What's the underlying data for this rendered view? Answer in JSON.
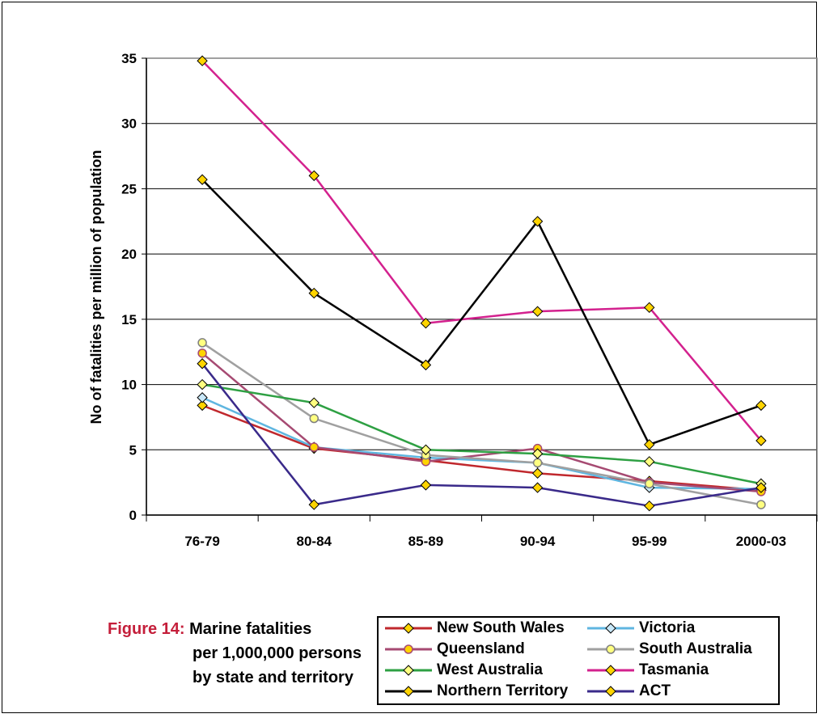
{
  "chart_data": {
    "type": "line",
    "categories": [
      "76-79",
      "80-84",
      "85-89",
      "90-94",
      "95-99",
      "2000-03"
    ],
    "ylabel": "No of fatalities per million of population",
    "xlabel": "",
    "ylim": [
      0,
      35
    ],
    "yticks": [
      0,
      5,
      10,
      15,
      20,
      25,
      30,
      35
    ],
    "grid": "horizontal",
    "legend_placement": "bottom-right",
    "series": [
      {
        "name": "New South Wales",
        "color": "#c0282d",
        "marker": "diamond",
        "marker_fill": "#ffd400",
        "values": [
          8.4,
          5.1,
          4.2,
          3.2,
          2.6,
          1.9
        ]
      },
      {
        "name": "Victoria",
        "color": "#5fb6e0",
        "marker": "diamond",
        "marker_fill": "#c9e8f8",
        "values": [
          9.0,
          5.2,
          4.4,
          4.0,
          2.1,
          2.0
        ]
      },
      {
        "name": "Queensland",
        "color": "#a64a72",
        "marker": "circle",
        "marker_fill": "#ffd400",
        "values": [
          12.4,
          5.2,
          4.1,
          5.1,
          2.5,
          1.8
        ]
      },
      {
        "name": "South Australia",
        "color": "#a0a0a0",
        "marker": "circle",
        "marker_fill": "#ffff80",
        "values": [
          13.2,
          7.4,
          4.6,
          4.0,
          2.4,
          0.8
        ]
      },
      {
        "name": "West Australia",
        "color": "#2ea043",
        "marker": "diamond",
        "marker_fill": "#ffff80",
        "values": [
          10.0,
          8.6,
          5.0,
          4.7,
          4.1,
          2.4
        ]
      },
      {
        "name": "Tasmania",
        "color": "#d3218e",
        "marker": "diamond",
        "marker_fill": "#ffd400",
        "values": [
          34.8,
          26.0,
          14.7,
          15.6,
          15.9,
          5.7
        ]
      },
      {
        "name": "Northern Territory",
        "color": "#000000",
        "marker": "diamond",
        "marker_fill": "#ffd400",
        "values": [
          25.7,
          17.0,
          11.5,
          22.5,
          5.4,
          8.4
        ]
      },
      {
        "name": "ACT",
        "color": "#3a2a8a",
        "marker": "diamond",
        "marker_fill": "#ffd400",
        "values": [
          11.6,
          0.8,
          2.3,
          2.1,
          0.7,
          2.1
        ]
      }
    ]
  },
  "caption": {
    "label": "Figure 14:",
    "line1": "Marine fatalities",
    "line2": "per 1,000,000 persons",
    "line3": "by state and territory"
  }
}
